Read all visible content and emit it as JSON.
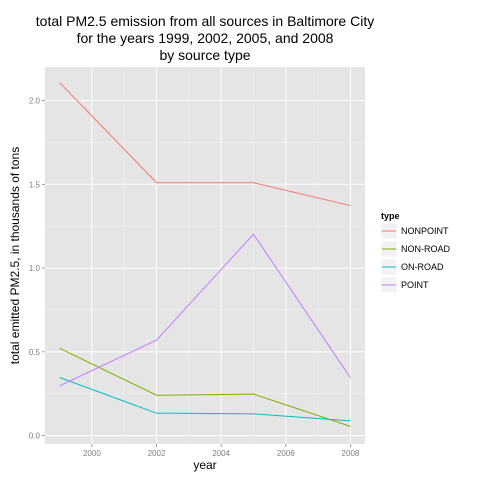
{
  "chart_data": {
    "type": "line",
    "title_lines": [
      "total PM2.5 emission from all sources in Baltimore City",
      "for the years 1999, 2002, 2005, and 2008",
      "by source type"
    ],
    "xlabel": "year",
    "ylabel": "total emitted PM2.5, in thousands of tons",
    "x": [
      1999,
      2002,
      2005,
      2008
    ],
    "xlim": [
      1998.55,
      2008.45
    ],
    "ylim": [
      -0.05,
      2.2
    ],
    "xticks": [
      2000,
      2002,
      2004,
      2006,
      2008
    ],
    "xtick_labels": [
      "2000",
      "2002",
      "2004",
      "2006",
      "2008"
    ],
    "yticks": [
      0.0,
      0.5,
      1.0,
      1.5,
      2.0
    ],
    "ytick_labels": [
      "0.0",
      "0.5",
      "1.0",
      "1.5",
      "2.0"
    ],
    "grid": true,
    "panel_background": "#e5e5e5",
    "grid_color": "#ffffff",
    "legend_title": "type",
    "legend_position": "right",
    "series": [
      {
        "name": "NONPOINT",
        "color": "#f8766d",
        "values": [
          2.107,
          1.509,
          1.509,
          1.373
        ]
      },
      {
        "name": "NON-ROAD",
        "color": "#7cae00",
        "values": [
          0.522,
          0.241,
          0.248,
          0.055
        ]
      },
      {
        "name": "ON-ROAD",
        "color": "#00bfc4",
        "values": [
          0.347,
          0.134,
          0.13,
          0.088
        ]
      },
      {
        "name": "POINT",
        "color": "#c77cff",
        "values": [
          0.297,
          0.57,
          1.202,
          0.345
        ]
      }
    ]
  }
}
